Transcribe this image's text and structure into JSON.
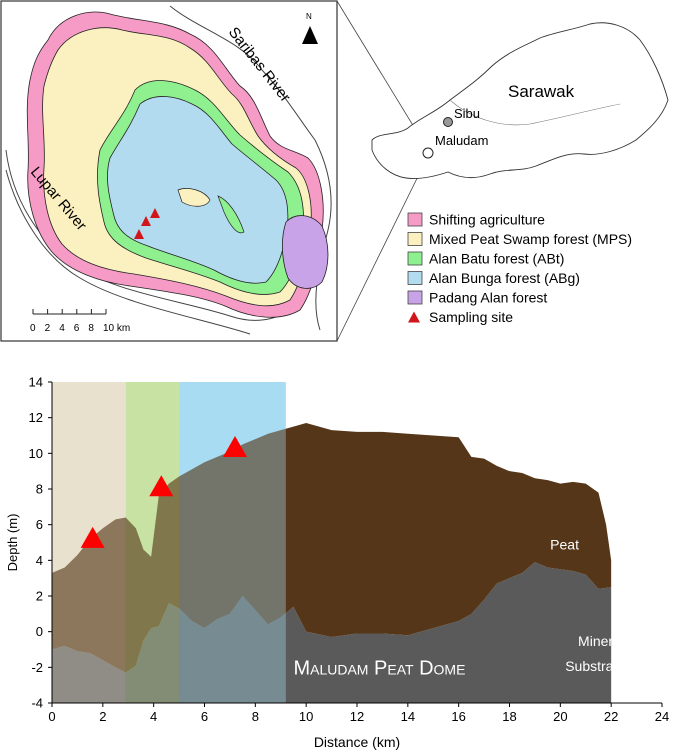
{
  "map": {
    "north_label": "N",
    "rivers": {
      "saribas": "Saribas River",
      "lupar": "Lupar River"
    },
    "scale": {
      "ticks": [
        "0",
        "2",
        "4",
        "6",
        "8",
        "10 km"
      ]
    },
    "colors": {
      "shifting_agriculture": "#f59bc6",
      "mps": "#fbf0bf",
      "abt": "#8ef08e",
      "abg": "#b3dbf0",
      "padang_alan": "#c9a3e8",
      "sampling": "#d0161b"
    }
  },
  "inset": {
    "region": "Sarawak",
    "towns": [
      {
        "name": "Sibu"
      },
      {
        "name": "Maludam"
      }
    ]
  },
  "legend": {
    "items": [
      {
        "label": "Shifting agriculture",
        "color": "#f59bc6",
        "shape": "box"
      },
      {
        "label": "Mixed Peat Swamp forest (MPS)",
        "color": "#fbf0bf",
        "shape": "box"
      },
      {
        "label": "Alan Batu forest (ABt)",
        "color": "#8ef08e",
        "shape": "box"
      },
      {
        "label": "Alan Bunga forest (ABg)",
        "color": "#b3dbf0",
        "shape": "box"
      },
      {
        "label": "Padang Alan forest",
        "color": "#c9a3e8",
        "shape": "box"
      },
      {
        "label": "Sampling site",
        "color": "#d0161b",
        "shape": "triangle"
      }
    ]
  },
  "chart_data": {
    "type": "area",
    "xlabel": "Distance (km)",
    "ylabel": "Depth (m)",
    "xlim": [
      0,
      24
    ],
    "ylim": [
      -4,
      14
    ],
    "xticks": [
      0,
      2,
      4,
      6,
      8,
      10,
      12,
      14,
      16,
      18,
      20,
      22,
      24
    ],
    "yticks": [
      -4,
      -2,
      0,
      2,
      4,
      6,
      8,
      10,
      12,
      14
    ],
    "forest_zones": [
      {
        "from": 0,
        "to": 2.9,
        "color": "#e8e1cd"
      },
      {
        "from": 2.9,
        "to": 5.0,
        "color": "#c9e3a3"
      },
      {
        "from": 5.0,
        "to": 9.2,
        "color": "#a9dcf3"
      }
    ],
    "peat_surface": {
      "x": [
        0,
        0.5,
        1.0,
        1.5,
        2.0,
        2.5,
        2.9,
        3.3,
        3.6,
        3.9,
        4.2,
        4.6,
        5.0,
        5.5,
        6.0,
        6.5,
        7.0,
        7.5,
        8.0,
        8.5,
        9.0,
        9.5,
        10.0,
        11.0,
        12.0,
        13.0,
        14.0,
        15.0,
        16.0,
        16.5,
        17.0,
        17.5,
        18.0,
        18.5,
        19.0,
        19.5,
        20.0,
        20.5,
        21.0,
        21.5,
        21.8,
        22.0
      ],
      "y": [
        3.3,
        3.6,
        4.3,
        5.2,
        5.8,
        6.3,
        6.4,
        5.8,
        4.6,
        4.2,
        7.6,
        8.3,
        8.7,
        9.1,
        9.5,
        9.8,
        10.1,
        10.5,
        10.8,
        11.1,
        11.3,
        11.5,
        11.7,
        11.3,
        11.2,
        11.2,
        11.1,
        11.0,
        10.9,
        9.8,
        9.7,
        9.3,
        9.0,
        8.9,
        8.6,
        8.5,
        8.3,
        8.4,
        8.3,
        7.8,
        6.0,
        4.0
      ]
    },
    "mineral_surface": {
      "x": [
        0,
        0.5,
        1.0,
        1.5,
        2.0,
        2.5,
        2.9,
        3.3,
        3.6,
        3.9,
        4.2,
        4.6,
        5.0,
        5.5,
        6.0,
        6.5,
        7.0,
        7.5,
        8.0,
        8.5,
        9.0,
        9.5,
        10.0,
        11.0,
        12.0,
        13.0,
        14.0,
        15.0,
        16.0,
        16.5,
        17.0,
        17.5,
        18.0,
        18.5,
        19.0,
        19.5,
        20.0,
        20.5,
        21.0,
        21.5,
        22.0
      ],
      "y": [
        -1.0,
        -0.8,
        -1.1,
        -1.2,
        -1.6,
        -2.0,
        -2.3,
        -1.9,
        -0.5,
        0.2,
        0.3,
        1.6,
        1.3,
        0.6,
        0.2,
        0.7,
        1.0,
        2.0,
        1.2,
        0.4,
        0.8,
        1.4,
        0.0,
        -0.3,
        -0.1,
        -0.1,
        -0.2,
        0.2,
        0.6,
        1.0,
        1.8,
        2.7,
        3.0,
        3.3,
        3.9,
        3.6,
        3.5,
        3.4,
        3.2,
        2.4,
        2.5
      ]
    },
    "sampling_sites": [
      {
        "x": 1.6,
        "y": 5.2
      },
      {
        "x": 4.3,
        "y": 8.1
      },
      {
        "x": 7.2,
        "y": 10.3
      }
    ],
    "annotations": {
      "peat": "Peat",
      "dome_title": "Maludam Peat Dome",
      "mineral_line1": "Mineral",
      "mineral_line2": "Substratum"
    }
  }
}
